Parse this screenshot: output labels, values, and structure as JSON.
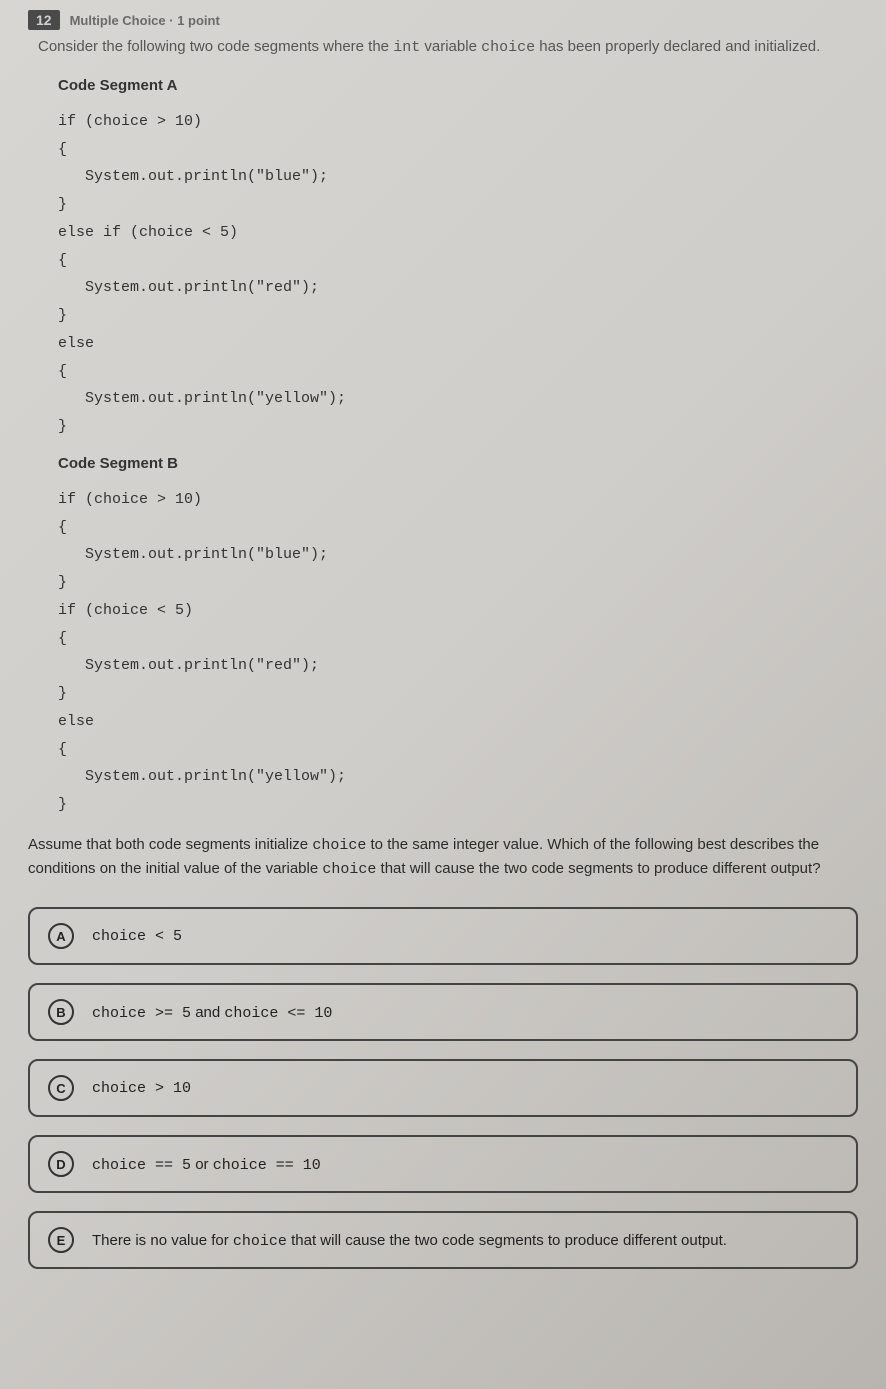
{
  "header": {
    "qnum": "12",
    "qtype": "Multiple Choice · 1 point"
  },
  "prompt": {
    "pre": "Consider the following two code segments where the ",
    "var1": "int",
    "mid": " variable ",
    "var2": "choice",
    "post": " has been properly declared and initialized."
  },
  "segA": {
    "title": "Code Segment A",
    "code": "if (choice > 10)\n{\n   System.out.println(\"blue\");\n}\nelse if (choice < 5)\n{\n   System.out.println(\"red\");\n}\nelse\n{\n   System.out.println(\"yellow\");\n}"
  },
  "segB": {
    "title": "Code Segment B",
    "code": "if (choice > 10)\n{\n   System.out.println(\"blue\");\n}\nif (choice < 5)\n{\n   System.out.println(\"red\");\n}\nelse\n{\n   System.out.println(\"yellow\");\n}"
  },
  "followup": {
    "p1": "Assume that both code segments initialize ",
    "c1": "choice",
    "p2": " to the same integer value. Which of the following best describes the conditions on the initial value of the variable ",
    "c2": "choice",
    "p3": " that will cause the two code segments to produce different output?"
  },
  "options": {
    "A": "choice < 5",
    "B_pre": "choice >= 5",
    "B_mid": " and ",
    "B_post": "choice <= 10",
    "C": "choice > 10",
    "D_pre": "choice == 5",
    "D_mid": " or ",
    "D_post": "choice == 10",
    "E_pre": "There is no value for ",
    "E_code": "choice",
    "E_post": " that will cause the two code segments to produce different output."
  },
  "letters": {
    "A": "A",
    "B": "B",
    "C": "C",
    "D": "D",
    "E": "E"
  }
}
